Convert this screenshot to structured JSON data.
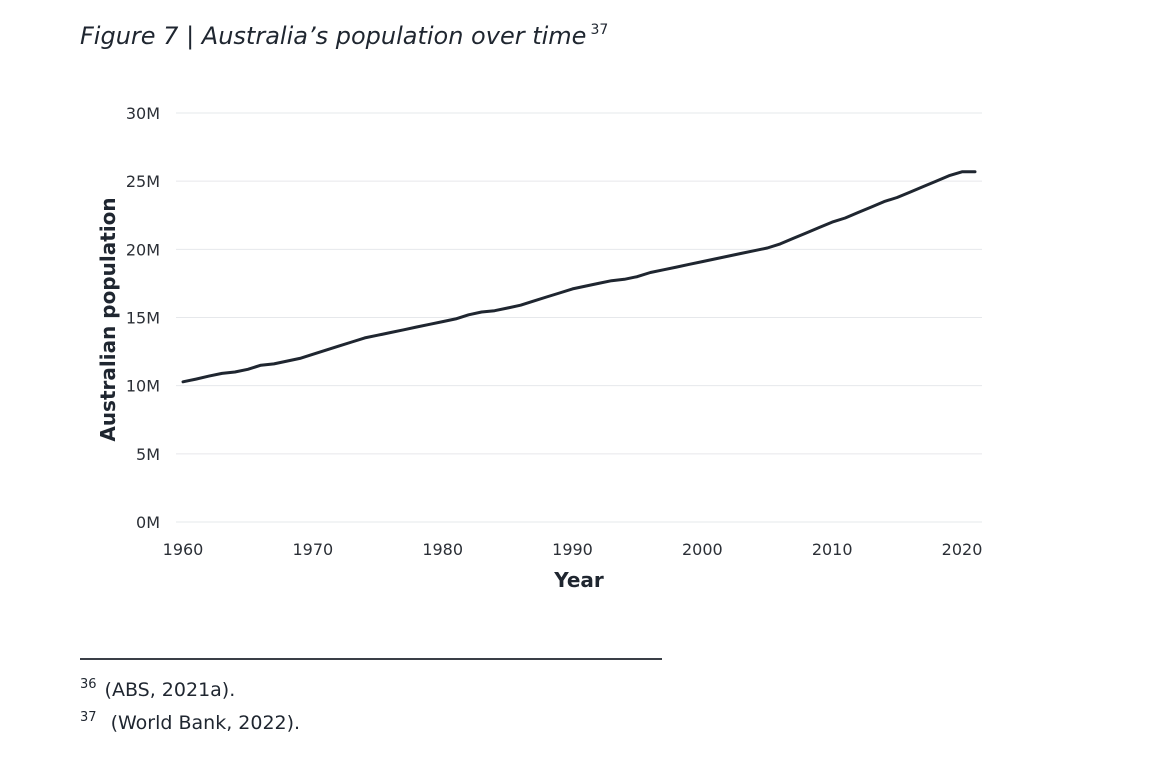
{
  "figure": {
    "title": "Figure 7 | Australia’s population over time",
    "title_ref": "37"
  },
  "chart_data": {
    "type": "line",
    "title": "Figure 7 | Australia’s population over time",
    "xlabel": "Year",
    "ylabel": "Australian population",
    "xlim": [
      1960,
      2021
    ],
    "ylim": [
      0,
      30000000
    ],
    "x_ticks": [
      1960,
      1970,
      1980,
      1990,
      2000,
      2010,
      2020
    ],
    "x_tick_labels": [
      "1960",
      "1970",
      "1980",
      "1990",
      "2000",
      "2010",
      "2020"
    ],
    "y_ticks": [
      0,
      5000000,
      10000000,
      15000000,
      20000000,
      25000000,
      30000000
    ],
    "y_tick_labels": [
      "0M",
      "5M",
      "10M",
      "15M",
      "20M",
      "25M",
      "30M"
    ],
    "grid": true,
    "series": [
      {
        "name": "Australian population",
        "color": "#1f2630",
        "x": [
          1960,
          1961,
          1962,
          1963,
          1964,
          1965,
          1966,
          1967,
          1968,
          1969,
          1970,
          1971,
          1972,
          1973,
          1974,
          1975,
          1976,
          1977,
          1978,
          1979,
          1980,
          1981,
          1982,
          1983,
          1984,
          1985,
          1986,
          1987,
          1988,
          1989,
          1990,
          1991,
          1992,
          1993,
          1994,
          1995,
          1996,
          1997,
          1998,
          1999,
          2000,
          2001,
          2002,
          2003,
          2004,
          2005,
          2006,
          2007,
          2008,
          2009,
          2010,
          2011,
          2012,
          2013,
          2014,
          2015,
          2016,
          2017,
          2018,
          2019,
          2020,
          2021
        ],
        "values": [
          10280000,
          10480000,
          10700000,
          10900000,
          11000000,
          11200000,
          11500000,
          11600000,
          11800000,
          12000000,
          12300000,
          12600000,
          12900000,
          13200000,
          13500000,
          13700000,
          13900000,
          14100000,
          14300000,
          14500000,
          14700000,
          14900000,
          15200000,
          15400000,
          15500000,
          15700000,
          15900000,
          16200000,
          16500000,
          16800000,
          17100000,
          17300000,
          17500000,
          17700000,
          17800000,
          18000000,
          18300000,
          18500000,
          18700000,
          18900000,
          19100000,
          19300000,
          19500000,
          19700000,
          19900000,
          20100000,
          20400000,
          20800000,
          21200000,
          21600000,
          22000000,
          22300000,
          22700000,
          23100000,
          23500000,
          23800000,
          24200000,
          24600000,
          25000000,
          25400000,
          25690000,
          25690000
        ]
      }
    ]
  },
  "footnotes": [
    {
      "num": "36",
      "text": "(ABS, 2021a)."
    },
    {
      "num": "37",
      "text": " (World Bank, 2022)."
    }
  ]
}
